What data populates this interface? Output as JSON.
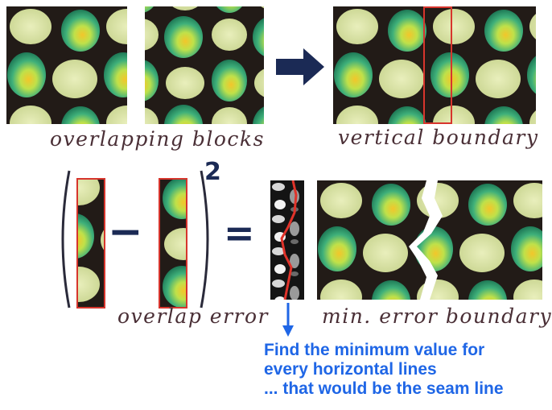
{
  "labels": {
    "overlapping_blocks": "overlapping blocks",
    "vertical_boundary": "vertical boundary",
    "overlap_error": "overlap error",
    "min_error_boundary": "min. error boundary"
  },
  "equation": {
    "exponent": "2",
    "minus": "−",
    "equals": "="
  },
  "note_lines": [
    "Find the minimum value for",
    "every horizontal lines",
    "... that would be the seam line"
  ],
  "colors": {
    "background": "#1e1a17",
    "blob_outer": "#2f9a6e",
    "blob_mid": "#a8dd4f",
    "blob_center": "#f2c92e",
    "cell_bg": "#dfe6ad",
    "highlight_border": "#d7352d",
    "arrow": "#1b2a55",
    "note_text": "#1f66e6",
    "label_text": "#4a2f36"
  }
}
